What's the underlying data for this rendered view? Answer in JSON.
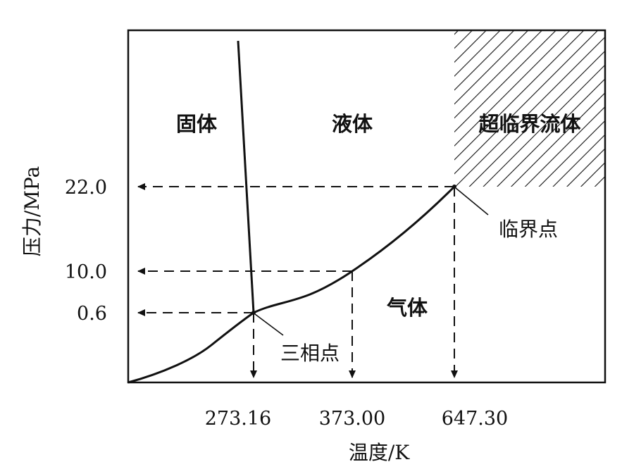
{
  "y_axis": {
    "title": "压力/MPa",
    "ticks": [
      "22.0",
      "10.0",
      "0.6"
    ]
  },
  "x_axis": {
    "title": "温度/K",
    "ticks": [
      "273.16",
      "373.00",
      "647.30"
    ]
  },
  "regions": {
    "solid": "固体",
    "liquid": "液体",
    "gas": "气体",
    "supercritical": "超临界流体"
  },
  "points": {
    "triple_point": "三相点",
    "critical_point": "临界点"
  },
  "colors": {
    "ink": "#111111",
    "background": "#ffffff"
  }
}
